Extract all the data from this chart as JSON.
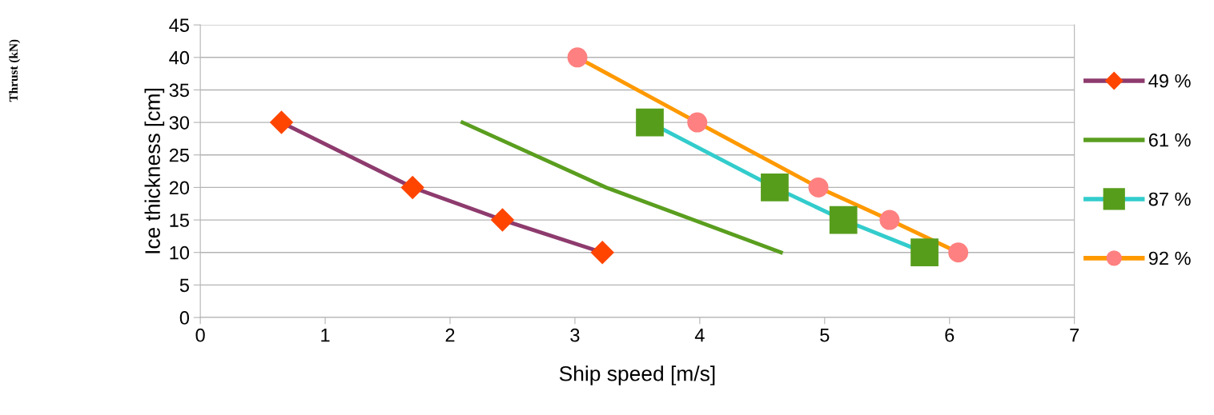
{
  "chart_data": {
    "type": "line",
    "xlabel": "Ship speed [m/s]",
    "ylabel": "Ice thickness [cm]",
    "annotations": [
      "Thrust (kN)"
    ],
    "xlim": [
      0,
      7
    ],
    "ylim": [
      0,
      45
    ],
    "xticks": [
      0,
      1,
      2,
      3,
      4,
      5,
      6,
      7
    ],
    "yticks": [
      0,
      5,
      10,
      15,
      20,
      25,
      30,
      35,
      40,
      45
    ],
    "grid": "y",
    "legend": "right",
    "series": [
      {
        "name": "49 %",
        "color": "#8e3b6e",
        "marker": "diamond",
        "colors": [
          "#ff4500",
          "#ff4500",
          "#ff4500",
          "#ff4500"
        ],
        "x": [
          0.65,
          1.7,
          2.42,
          3.22
        ],
        "values": [
          30,
          20,
          15,
          10
        ]
      },
      {
        "name": "61 %",
        "color": "#5a9e1f",
        "marker": "none",
        "colors": [
          "#ffd320",
          "#ffd320",
          "#ffd320",
          "#ffd320"
        ],
        "x": [
          2.1,
          3.25,
          3.95,
          4.65
        ],
        "values": [
          30,
          20,
          15,
          10
        ]
      },
      {
        "name": "87 %",
        "color": "#33cccc",
        "marker": "square",
        "colors": [
          "#579d1c",
          "#579d1c",
          "#579d1c",
          "#579d1c"
        ],
        "x": [
          3.6,
          4.6,
          5.15,
          5.8
        ],
        "values": [
          30,
          20,
          15,
          10
        ]
      },
      {
        "name": "92 %",
        "color": "#ff9900",
        "marker": "circle",
        "colors": [
          "#ff8080",
          "#ff8080",
          "#ff8080",
          "#ff8080",
          "#ff8080"
        ],
        "x": [
          3.02,
          3.98,
          4.95,
          5.52,
          6.07
        ],
        "values": [
          40,
          30,
          20,
          15,
          10
        ]
      }
    ]
  }
}
